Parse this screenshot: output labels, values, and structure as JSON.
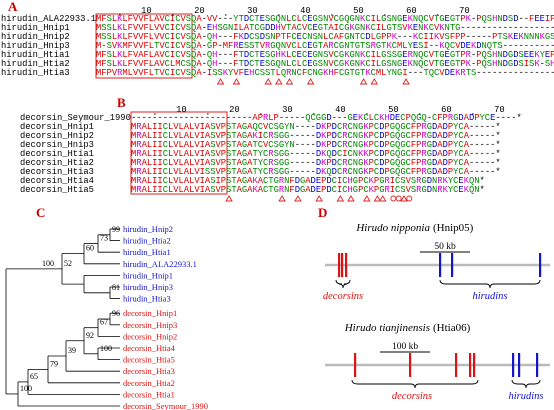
{
  "panels": {
    "A": {
      "label": "A",
      "ruler": [
        10,
        20,
        30,
        40,
        50,
        60,
        70
      ],
      "rows": [
        {
          "name": "hirudin_ALA22933.1",
          "seq": "MFSLKLFVVFLAVCICVSQA-VV---YTDCTESGQNLCLCEGSNVCGQGNKCILGSNGEKNQCVTGEGTPK-PQSHNDSD--FEEIP-EEYLQ*"
        },
        {
          "name": "hirudin_Hnip1",
          "seq": "MSSLKLFVVFLVVCICVSQA-EHSGNILATCGDDHVTACVCEGTAICGKGNKCILGTSVKENKCVKNTG-----------------------*"
        },
        {
          "name": "hirudin_Hnip2",
          "seq": "MSSLKLFVVFLVVCICVSQA-QH---FKDCSDSNPTFCECNSNLCAFGNTCDLGPPK---KCIIKVSFPP-----PTSKEKNNNKGSKSDYDY*"
        },
        {
          "name": "hirudin_Hnip3",
          "seq": "M-SVKMFVVFLTVCICVSQA-GP-MFRESSTVRGQNVCLCEGTARCGNTGTSRGTKCMLYESI--KQCVDEKDNQTS---------------*"
        },
        {
          "name": "hirudin_Htia1",
          "seq": "MFSLKLFVAFLAVCICVSQA-QH---FTDCTESGHKLCECEGNSVCGKGNKCILGSSGERNQCVTGEGTPR-PQSHNDGDSEEKYEPIPIEDYDK*"
        },
        {
          "name": "hirudin_Htia2",
          "seq": "MFSLKLFVVFLAVCLMCSQA-QH---FTDCTESGQNLCLCEGSNVCGKGNKCILGSNGEKNQCVTGEGTPK-PQSHNDGDSISK-SHEYEDYD*"
        },
        {
          "name": "hirudin_Htia3",
          "seq": "MFPVRMLVVFLTVCICVSQA-ISSKYVFEHCSSTLQRNCFCNGKHFCGTGTKCMLYNGI---TQCVDEKRTS------------------*"
        }
      ]
    },
    "B": {
      "label": "B",
      "ruler": [
        10,
        20,
        30,
        40,
        50,
        60,
        70
      ],
      "rows": [
        {
          "name": "decorsin_Seymour_1990",
          "seq": "-----------------------APRLP-----QCGGD---GEKCLCKHDECPQGQ-CFPRGDADPYCE----*"
        },
        {
          "name": "decorsin_Hnip1",
          "seq": "MRALIICLVLALVIASVPSTAGAQCVCSGYN----DKPDCRCNGKPCDPGQGCFPRGDADPYCA-----*"
        },
        {
          "name": "decorsin_Hnip2",
          "seq": "MRALIICLVLALVIASVPSTAGAKICRSGG-----DKPDCRCNGKPCDPGQGCFPRGDADPYCA-----*"
        },
        {
          "name": "decorsin_Hnip3",
          "seq": "MRALIICLVLALVIASVPSTAGATCVCSGYN----DKPDCRCNGKPCDPGQGCFPRGDADPYCA-----*"
        },
        {
          "name": "decorsin_Htia1",
          "seq": "MRALIICLVLALVIASVPSTAGATYCRSGG-----DKQDCICNKKPCDPGQGCFPRGDADPYCA-----*"
        },
        {
          "name": "decorsin_Htia2",
          "seq": "MRALIICLVLALVIASVPSTAGATYCRSGG-----DKPDCRCNGKPCDPGQGCFPRGDADPYCA-----*"
        },
        {
          "name": "decorsin_Htia3",
          "seq": "MRALIICLVLALVISSVPSTAGATYCRSGG-----DKQDCRCNGKPCDPGQGCFPRGDADPYCA-----*"
        },
        {
          "name": "decorsin_Htia4",
          "seq": "MRALIICLVLALVIASIPSTAGAKACTGRNFDGADEPDCICHGPCKPGRICSVSRGDNRKYCEKQN*"
        },
        {
          "name": "decorsin_Htia5",
          "seq": "MRALIICLVLALVIASVPSTAGAKACTGRNFDGADEPDCICHGPCKPGRICSVSRGDNRKYCEKQN*"
        }
      ]
    },
    "C": {
      "label": "C",
      "hirudins": [
        "hirudin_Hnip2",
        "hirudin_Htia2",
        "hirudin_Htia1",
        "hirudin_ALA22933.1",
        "hirudin_Hnip1",
        "hirudin_Hnip3",
        "hirudin_Htia3"
      ],
      "decorsins": [
        "decorsin_Hnip1",
        "decorsin_Hnip3",
        "decorsin_Hnip2",
        "decorsin_Htia4",
        "decorsin_Htia5",
        "decorsin_Htia3",
        "decorsin_Htia2",
        "decorsin_Htia1",
        "decorsin_Seymour_1990"
      ],
      "bootstrap": [
        99,
        73,
        60,
        81,
        52,
        100,
        96,
        67,
        100,
        92,
        39,
        79,
        65,
        100
      ]
    },
    "D": {
      "label": "D",
      "maps": [
        {
          "species": "Hirudo nipponia",
          "strain": "(Hnip05)",
          "scale": "50 kb",
          "decorsins": "decorsins",
          "hirudins": "hirudins"
        },
        {
          "species": "Hirudo tianjinensis",
          "strain": "(Htia06)",
          "scale": "100 kb",
          "decorsins": "decorsins",
          "hirudins": "hirudins"
        }
      ]
    }
  }
}
